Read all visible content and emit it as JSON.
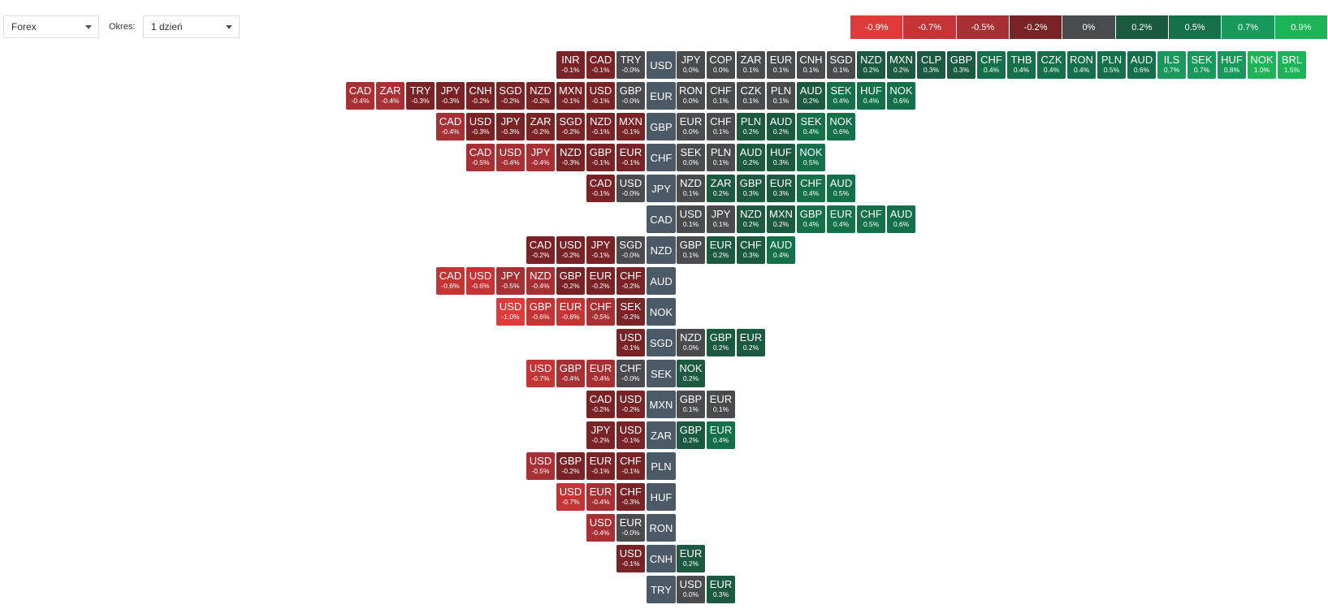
{
  "controls": {
    "market": "Forex",
    "period_label": "Okres:",
    "period": "1 dzień"
  },
  "legend": [
    {
      "value": -0.9,
      "label": "-0.9%",
      "color": "#e03a3a"
    },
    {
      "value": -0.7,
      "label": "-0.7%",
      "color": "#c53434"
    },
    {
      "value": -0.5,
      "label": "-0.5%",
      "color": "#a63034"
    },
    {
      "value": -0.2,
      "label": "-0.2%",
      "color": "#7a2326"
    },
    {
      "value": 0,
      "label": "0%",
      "color": "#4a4b4e"
    },
    {
      "value": 0.2,
      "label": "0.2%",
      "color": "#1c5a40"
    },
    {
      "value": 0.5,
      "label": "0.5%",
      "color": "#137049"
    },
    {
      "value": 0.7,
      "label": "0.7%",
      "color": "#17995c"
    },
    {
      "value": 0.9,
      "label": "0.9%",
      "color": "#1db458"
    }
  ],
  "base_color": "#4b5a66",
  "rows": [
    {
      "base": "USD",
      "left": [
        {
          "code": "INR",
          "value": -0.1,
          "label": "-0.1%"
        },
        {
          "code": "CAD",
          "value": -0.1,
          "label": "-0.1%"
        },
        {
          "code": "TRY",
          "value": 0,
          "label": "-0.0%"
        }
      ],
      "right": [
        {
          "code": "JPY",
          "value": 0,
          "label": "0.0%"
        },
        {
          "code": "COP",
          "value": 0,
          "label": "0.0%"
        },
        {
          "code": "ZAR",
          "value": 0.1,
          "label": "0.1%"
        },
        {
          "code": "EUR",
          "value": 0.1,
          "label": "0.1%"
        },
        {
          "code": "CNH",
          "value": 0.1,
          "label": "0.1%"
        },
        {
          "code": "SGD",
          "value": 0.1,
          "label": "0.1%"
        },
        {
          "code": "NZD",
          "value": 0.2,
          "label": "0.2%"
        },
        {
          "code": "MXN",
          "value": 0.2,
          "label": "0.2%"
        },
        {
          "code": "CLP",
          "value": 0.3,
          "label": "0.3%"
        },
        {
          "code": "GBP",
          "value": 0.3,
          "label": "0.3%"
        },
        {
          "code": "CHF",
          "value": 0.4,
          "label": "0.4%"
        },
        {
          "code": "THB",
          "value": 0.4,
          "label": "0.4%"
        },
        {
          "code": "CZK",
          "value": 0.4,
          "label": "0.4%"
        },
        {
          "code": "RON",
          "value": 0.4,
          "label": "0.4%"
        },
        {
          "code": "PLN",
          "value": 0.5,
          "label": "0.5%"
        },
        {
          "code": "AUD",
          "value": 0.6,
          "label": "0.6%"
        },
        {
          "code": "ILS",
          "value": 0.7,
          "label": "0.7%"
        },
        {
          "code": "SEK",
          "value": 0.7,
          "label": "0.7%"
        },
        {
          "code": "HUF",
          "value": 0.8,
          "label": "0.8%"
        },
        {
          "code": "NOK",
          "value": 1.0,
          "label": "1.0%"
        },
        {
          "code": "BRL",
          "value": 1.5,
          "label": "1.5%"
        }
      ]
    },
    {
      "base": "EUR",
      "left": [
        {
          "code": "CAD",
          "value": -0.4,
          "label": "-0.4%"
        },
        {
          "code": "ZAR",
          "value": -0.4,
          "label": "-0.4%"
        },
        {
          "code": "TRY",
          "value": -0.3,
          "label": "-0.3%"
        },
        {
          "code": "JPY",
          "value": -0.3,
          "label": "-0.3%"
        },
        {
          "code": "CNH",
          "value": -0.2,
          "label": "-0.2%"
        },
        {
          "code": "SGD",
          "value": -0.2,
          "label": "-0.2%"
        },
        {
          "code": "NZD",
          "value": -0.2,
          "label": "-0.2%"
        },
        {
          "code": "MXN",
          "value": -0.1,
          "label": "-0.1%"
        },
        {
          "code": "USD",
          "value": -0.1,
          "label": "-0.1%"
        },
        {
          "code": "GBP",
          "value": 0,
          "label": "-0.0%"
        }
      ],
      "right": [
        {
          "code": "RON",
          "value": 0,
          "label": "0.0%"
        },
        {
          "code": "CHF",
          "value": 0.1,
          "label": "0.1%"
        },
        {
          "code": "CZK",
          "value": 0.1,
          "label": "0.1%"
        },
        {
          "code": "PLN",
          "value": 0.1,
          "label": "0.1%"
        },
        {
          "code": "AUD",
          "value": 0.2,
          "label": "0.2%"
        },
        {
          "code": "SEK",
          "value": 0.4,
          "label": "0.4%"
        },
        {
          "code": "HUF",
          "value": 0.4,
          "label": "0.4%"
        },
        {
          "code": "NOK",
          "value": 0.6,
          "label": "0.6%"
        }
      ]
    },
    {
      "base": "GBP",
      "left": [
        {
          "code": "CAD",
          "value": -0.4,
          "label": "-0.4%"
        },
        {
          "code": "USD",
          "value": -0.3,
          "label": "-0.3%"
        },
        {
          "code": "JPY",
          "value": -0.3,
          "label": "-0.3%"
        },
        {
          "code": "ZAR",
          "value": -0.2,
          "label": "-0.2%"
        },
        {
          "code": "SGD",
          "value": -0.2,
          "label": "-0.2%"
        },
        {
          "code": "NZD",
          "value": -0.1,
          "label": "-0.1%"
        },
        {
          "code": "MXN",
          "value": -0.1,
          "label": "-0.1%"
        }
      ],
      "right": [
        {
          "code": "EUR",
          "value": 0,
          "label": "0.0%"
        },
        {
          "code": "CHF",
          "value": 0.1,
          "label": "0.1%"
        },
        {
          "code": "PLN",
          "value": 0.2,
          "label": "0.2%"
        },
        {
          "code": "AUD",
          "value": 0.2,
          "label": "0.2%"
        },
        {
          "code": "SEK",
          "value": 0.4,
          "label": "0.4%"
        },
        {
          "code": "NOK",
          "value": 0.6,
          "label": "0.6%"
        }
      ]
    },
    {
      "base": "CHF",
      "left": [
        {
          "code": "CAD",
          "value": -0.5,
          "label": "-0.5%"
        },
        {
          "code": "USD",
          "value": -0.4,
          "label": "-0.4%"
        },
        {
          "code": "JPY",
          "value": -0.4,
          "label": "-0.4%"
        },
        {
          "code": "NZD",
          "value": -0.3,
          "label": "-0.3%"
        },
        {
          "code": "GBP",
          "value": -0.1,
          "label": "-0.1%"
        },
        {
          "code": "EUR",
          "value": -0.1,
          "label": "-0.1%"
        }
      ],
      "right": [
        {
          "code": "SEK",
          "value": 0,
          "label": "0.0%"
        },
        {
          "code": "PLN",
          "value": 0.1,
          "label": "0.1%"
        },
        {
          "code": "AUD",
          "value": 0.2,
          "label": "0.2%"
        },
        {
          "code": "HUF",
          "value": 0.3,
          "label": "0.3%"
        },
        {
          "code": "NOK",
          "value": 0.5,
          "label": "0.5%"
        }
      ]
    },
    {
      "base": "JPY",
      "left": [
        {
          "code": "CAD",
          "value": -0.1,
          "label": "-0.1%"
        },
        {
          "code": "USD",
          "value": 0,
          "label": "-0.0%"
        }
      ],
      "right": [
        {
          "code": "NZD",
          "value": 0.1,
          "label": "0.1%"
        },
        {
          "code": "ZAR",
          "value": 0.2,
          "label": "0.2%"
        },
        {
          "code": "GBP",
          "value": 0.3,
          "label": "0.3%"
        },
        {
          "code": "EUR",
          "value": 0.3,
          "label": "0.3%"
        },
        {
          "code": "CHF",
          "value": 0.4,
          "label": "0.4%"
        },
        {
          "code": "AUD",
          "value": 0.5,
          "label": "0.5%"
        }
      ]
    },
    {
      "base": "CAD",
      "left": [],
      "right": [
        {
          "code": "USD",
          "value": 0.1,
          "label": "0.1%"
        },
        {
          "code": "JPY",
          "value": 0.1,
          "label": "0.1%"
        },
        {
          "code": "NZD",
          "value": 0.2,
          "label": "0.2%"
        },
        {
          "code": "MXN",
          "value": 0.2,
          "label": "0.2%"
        },
        {
          "code": "GBP",
          "value": 0.4,
          "label": "0.4%"
        },
        {
          "code": "EUR",
          "value": 0.4,
          "label": "0.4%"
        },
        {
          "code": "CHF",
          "value": 0.5,
          "label": "0.5%"
        },
        {
          "code": "AUD",
          "value": 0.6,
          "label": "0.6%"
        }
      ]
    },
    {
      "base": "NZD",
      "left": [
        {
          "code": "CAD",
          "value": -0.2,
          "label": "-0.2%"
        },
        {
          "code": "USD",
          "value": -0.2,
          "label": "-0.2%"
        },
        {
          "code": "JPY",
          "value": -0.1,
          "label": "-0.1%"
        },
        {
          "code": "SGD",
          "value": 0,
          "label": "-0.0%"
        }
      ],
      "right": [
        {
          "code": "GBP",
          "value": 0.1,
          "label": "0.1%"
        },
        {
          "code": "EUR",
          "value": 0.2,
          "label": "0.2%"
        },
        {
          "code": "CHF",
          "value": 0.3,
          "label": "0.3%"
        },
        {
          "code": "AUD",
          "value": 0.4,
          "label": "0.4%"
        }
      ]
    },
    {
      "base": "AUD",
      "left": [
        {
          "code": "CAD",
          "value": -0.6,
          "label": "-0.6%"
        },
        {
          "code": "USD",
          "value": -0.6,
          "label": "-0.6%"
        },
        {
          "code": "JPY",
          "value": -0.5,
          "label": "-0.5%"
        },
        {
          "code": "NZD",
          "value": -0.4,
          "label": "-0.4%"
        },
        {
          "code": "GBP",
          "value": -0.2,
          "label": "-0.2%"
        },
        {
          "code": "EUR",
          "value": -0.2,
          "label": "-0.2%"
        },
        {
          "code": "CHF",
          "value": -0.2,
          "label": "-0.2%"
        }
      ],
      "right": []
    },
    {
      "base": "NOK",
      "left": [
        {
          "code": "USD",
          "value": -1.0,
          "label": "-1.0%"
        },
        {
          "code": "GBP",
          "value": -0.6,
          "label": "-0.6%"
        },
        {
          "code": "EUR",
          "value": -0.6,
          "label": "-0.6%"
        },
        {
          "code": "CHF",
          "value": -0.5,
          "label": "-0.5%"
        },
        {
          "code": "SEK",
          "value": -0.2,
          "label": "-0.2%"
        }
      ],
      "right": []
    },
    {
      "base": "SGD",
      "left": [
        {
          "code": "USD",
          "value": -0.1,
          "label": "-0.1%"
        }
      ],
      "right": [
        {
          "code": "NZD",
          "value": 0,
          "label": "0.0%"
        },
        {
          "code": "GBP",
          "value": 0.2,
          "label": "0.2%"
        },
        {
          "code": "EUR",
          "value": 0.2,
          "label": "0.2%"
        }
      ]
    },
    {
      "base": "SEK",
      "left": [
        {
          "code": "USD",
          "value": -0.7,
          "label": "-0.7%"
        },
        {
          "code": "GBP",
          "value": -0.4,
          "label": "-0.4%"
        },
        {
          "code": "EUR",
          "value": -0.4,
          "label": "-0.4%"
        },
        {
          "code": "CHF",
          "value": 0,
          "label": "-0.0%"
        }
      ],
      "right": [
        {
          "code": "NOK",
          "value": 0.2,
          "label": "0.2%"
        }
      ]
    },
    {
      "base": "MXN",
      "left": [
        {
          "code": "CAD",
          "value": -0.2,
          "label": "-0.2%"
        },
        {
          "code": "USD",
          "value": -0.2,
          "label": "-0.2%"
        }
      ],
      "right": [
        {
          "code": "GBP",
          "value": 0.1,
          "label": "0.1%"
        },
        {
          "code": "EUR",
          "value": 0.1,
          "label": "0.1%"
        }
      ]
    },
    {
      "base": "ZAR",
      "left": [
        {
          "code": "JPY",
          "value": -0.2,
          "label": "-0.2%"
        },
        {
          "code": "USD",
          "value": -0.1,
          "label": "-0.1%"
        }
      ],
      "right": [
        {
          "code": "GBP",
          "value": 0.2,
          "label": "0.2%"
        },
        {
          "code": "EUR",
          "value": 0.4,
          "label": "0.4%"
        }
      ]
    },
    {
      "base": "PLN",
      "left": [
        {
          "code": "USD",
          "value": -0.5,
          "label": "-0.5%"
        },
        {
          "code": "GBP",
          "value": -0.2,
          "label": "-0.2%"
        },
        {
          "code": "EUR",
          "value": -0.1,
          "label": "-0.1%"
        },
        {
          "code": "CHF",
          "value": -0.1,
          "label": "-0.1%"
        }
      ],
      "right": []
    },
    {
      "base": "HUF",
      "left": [
        {
          "code": "USD",
          "value": -0.7,
          "label": "-0.7%"
        },
        {
          "code": "EUR",
          "value": -0.4,
          "label": "-0.4%"
        },
        {
          "code": "CHF",
          "value": -0.3,
          "label": "-0.3%"
        }
      ],
      "right": []
    },
    {
      "base": "RON",
      "left": [
        {
          "code": "USD",
          "value": -0.4,
          "label": "-0.4%"
        },
        {
          "code": "EUR",
          "value": 0,
          "label": "-0.0%"
        }
      ],
      "right": []
    },
    {
      "base": "CNH",
      "left": [
        {
          "code": "USD",
          "value": -0.1,
          "label": "-0.1%"
        }
      ],
      "right": [
        {
          "code": "EUR",
          "value": 0.2,
          "label": "0.2%"
        }
      ]
    },
    {
      "base": "TRY",
      "left": [],
      "right": [
        {
          "code": "USD",
          "value": 0,
          "label": "0.0%"
        },
        {
          "code": "EUR",
          "value": 0.3,
          "label": "0.3%"
        }
      ]
    }
  ]
}
